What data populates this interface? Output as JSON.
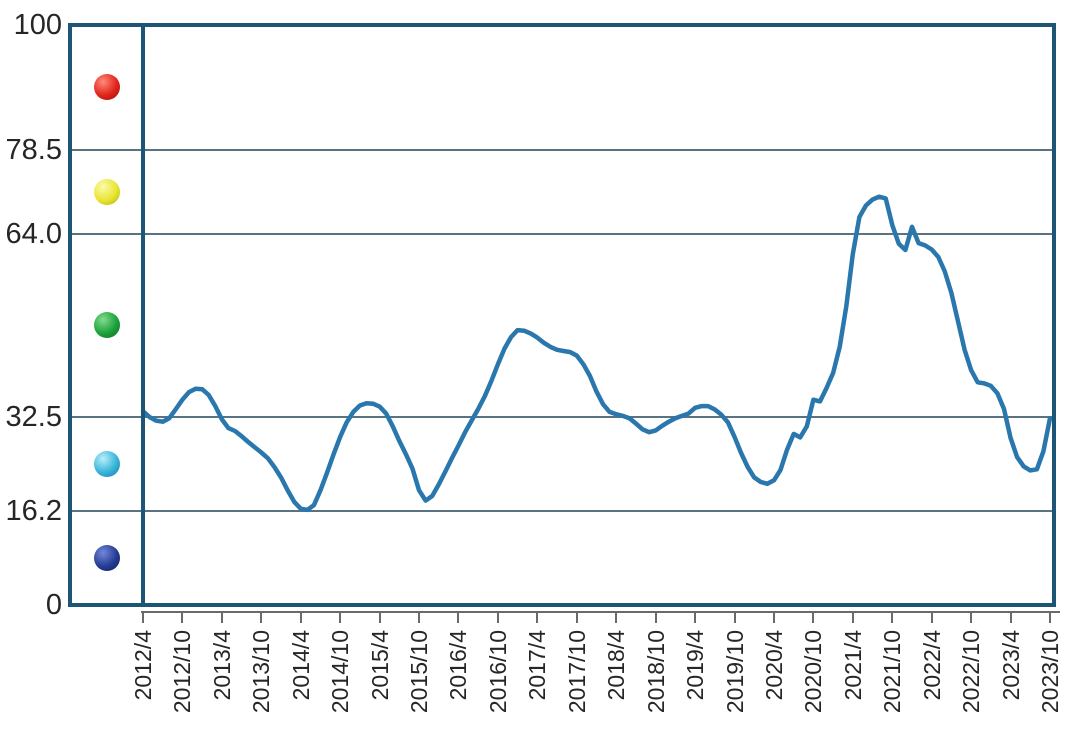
{
  "chart_data": {
    "type": "line",
    "title": "",
    "y_axis": {
      "range": [
        0,
        100
      ],
      "ticks": [
        {
          "value": 100,
          "label": "100"
        },
        {
          "value": 78.5,
          "label": "78.5"
        },
        {
          "value": 64.0,
          "label": "64.0"
        },
        {
          "value": 32.5,
          "label": "32.5"
        },
        {
          "value": 16.2,
          "label": "16.2"
        },
        {
          "value": 0,
          "label": "0"
        }
      ],
      "gridlines_at": [
        78.5,
        64.0,
        32.5,
        16.2
      ]
    },
    "x_axis": {
      "tick_labels": [
        "2012/4",
        "2012/10",
        "2013/4",
        "2013/10",
        "2014/4",
        "2014/10",
        "2015/4",
        "2015/10",
        "2016/4",
        "2016/10",
        "2017/4",
        "2017/10",
        "2018/4",
        "2018/10",
        "2019/4",
        "2019/10",
        "2020/4",
        "2020/10",
        "2021/4",
        "2021/10",
        "2022/4",
        "2022/10",
        "2023/4",
        "2023/10"
      ],
      "months_per_tick": 6
    },
    "lamp_legend": [
      {
        "name": "red-lamp",
        "zone": [
          78.5,
          100
        ],
        "color": "#e1251b",
        "gradient": [
          "#ff8a78",
          "#e1251b",
          "#9a0f06"
        ]
      },
      {
        "name": "yellow-lamp",
        "zone": [
          64.0,
          78.5
        ],
        "color": "#e9e532",
        "gradient": [
          "#fcfaa8",
          "#e9e532",
          "#b2ae06"
        ]
      },
      {
        "name": "green-lamp",
        "zone": [
          32.5,
          64.0
        ],
        "color": "#1ca13a",
        "gradient": [
          "#82db8e",
          "#1ca13a",
          "#0b6a21"
        ]
      },
      {
        "name": "light-blue-lamp",
        "zone": [
          16.2,
          32.5
        ],
        "color": "#38b4da",
        "gradient": [
          "#baeefa",
          "#38b4da",
          "#127ca2"
        ]
      },
      {
        "name": "dark-blue-lamp",
        "zone": [
          0,
          16.2
        ],
        "color": "#243c92",
        "gradient": [
          "#7288da",
          "#243c92",
          "#0e1c5a"
        ]
      }
    ],
    "series": [
      {
        "name": "index-line",
        "color": "#2a77ad",
        "start": "2012/4",
        "end": "2023/10",
        "step": "monthly",
        "values": [
          33.4,
          32.4,
          31.8,
          31.6,
          32.2,
          33.8,
          35.4,
          36.7,
          37.3,
          37.2,
          36.2,
          34.3,
          32.0,
          30.5,
          30.0,
          29.1,
          28.1,
          27.2,
          26.3,
          25.3,
          23.8,
          22.0,
          19.8,
          17.8,
          16.6,
          16.4,
          17.2,
          19.8,
          22.8,
          26.0,
          29.0,
          31.5,
          33.3,
          34.4,
          34.8,
          34.7,
          34.2,
          33.0,
          30.8,
          28.3,
          26.0,
          23.5,
          19.8,
          18.0,
          18.8,
          20.8,
          23.0,
          25.3,
          27.5,
          29.8,
          31.8,
          33.8,
          36.0,
          38.6,
          41.5,
          44.2,
          46.2,
          47.4,
          47.3,
          46.8,
          46.1,
          45.2,
          44.5,
          44.0,
          43.8,
          43.6,
          43.0,
          41.5,
          39.5,
          36.8,
          34.6,
          33.3,
          32.9,
          32.6,
          32.2,
          31.3,
          30.3,
          29.8,
          30.1,
          30.9,
          31.6,
          32.2,
          32.6,
          33.0,
          34.0,
          34.3,
          34.3,
          33.7,
          32.8,
          31.5,
          29.0,
          26.2,
          23.8,
          22.0,
          21.2,
          20.9,
          21.5,
          23.3,
          26.8,
          29.5,
          28.9,
          30.8,
          35.4,
          35.1,
          37.4,
          40.0,
          44.5,
          51.5,
          60.5,
          66.9,
          68.9,
          69.9,
          70.4,
          70.1,
          65.5,
          62.3,
          61.2,
          65.2,
          62.4,
          62.0,
          61.3,
          60.0,
          57.5,
          53.8,
          48.9,
          44.0,
          40.5,
          38.4,
          38.2,
          37.8,
          36.5,
          33.8,
          28.8,
          25.5,
          23.9,
          23.2,
          23.4,
          26.5,
          32.2
        ]
      }
    ],
    "grid": true,
    "legend_position": "left-lamp-column"
  },
  "colors": {
    "frame": "#1c5576",
    "gridline": "#5b7280",
    "axis": "#6a6a6a",
    "label_text": "#262626",
    "line": "#2a77ad",
    "plot_background": "#ffffff"
  }
}
